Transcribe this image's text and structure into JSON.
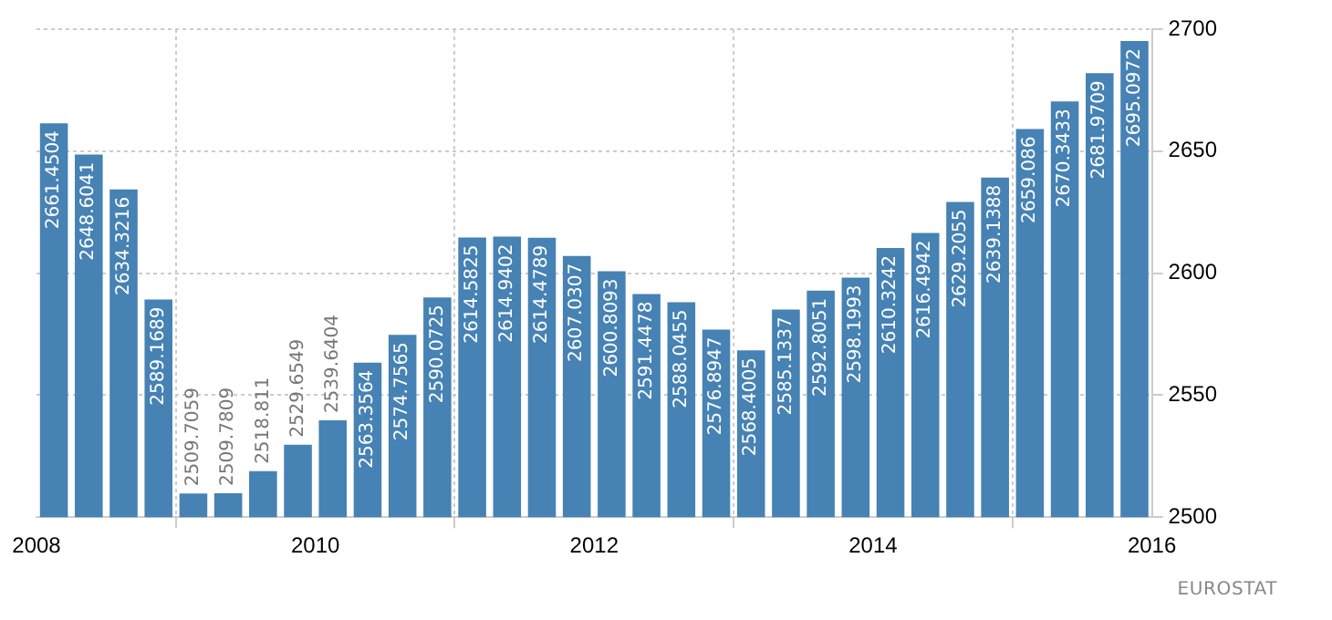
{
  "chart_data": {
    "type": "bar",
    "x": [
      2008.125,
      2008.375,
      2008.625,
      2008.875,
      2009.125,
      2009.375,
      2009.625,
      2009.875,
      2010.125,
      2010.375,
      2010.625,
      2010.875,
      2011.125,
      2011.375,
      2011.625,
      2011.875,
      2012.125,
      2012.375,
      2012.625,
      2012.875,
      2013.125,
      2013.375,
      2013.625,
      2013.875,
      2014.125,
      2014.375,
      2014.625,
      2014.875,
      2015.125,
      2015.375,
      2015.625,
      2015.875
    ],
    "values": [
      2661.4504,
      2648.6041,
      2634.3216,
      2589.1689,
      2509.7059,
      2509.7809,
      2518.811,
      2529.6549,
      2539.6404,
      2563.3564,
      2574.7565,
      2590.0725,
      2614.5825,
      2614.9402,
      2614.4789,
      2607.0307,
      2600.8093,
      2591.4478,
      2588.0455,
      2576.8947,
      2568.4005,
      2585.1337,
      2592.8051,
      2598.1993,
      2610.3242,
      2616.4942,
      2629.2055,
      2639.1388,
      2659.086,
      2670.3433,
      2681.9709,
      2695.0972
    ],
    "color": "#4682b4",
    "xlim": [
      2008,
      2016
    ],
    "xticks": [
      2008,
      2010,
      2012,
      2014,
      2016
    ],
    "ylim": [
      2500,
      2700
    ],
    "yticks": [
      2500,
      2550,
      2600,
      2650,
      2700
    ],
    "grid": true,
    "legend": false,
    "data_labels": true,
    "annotations": [
      "EUROSTAT"
    ]
  }
}
